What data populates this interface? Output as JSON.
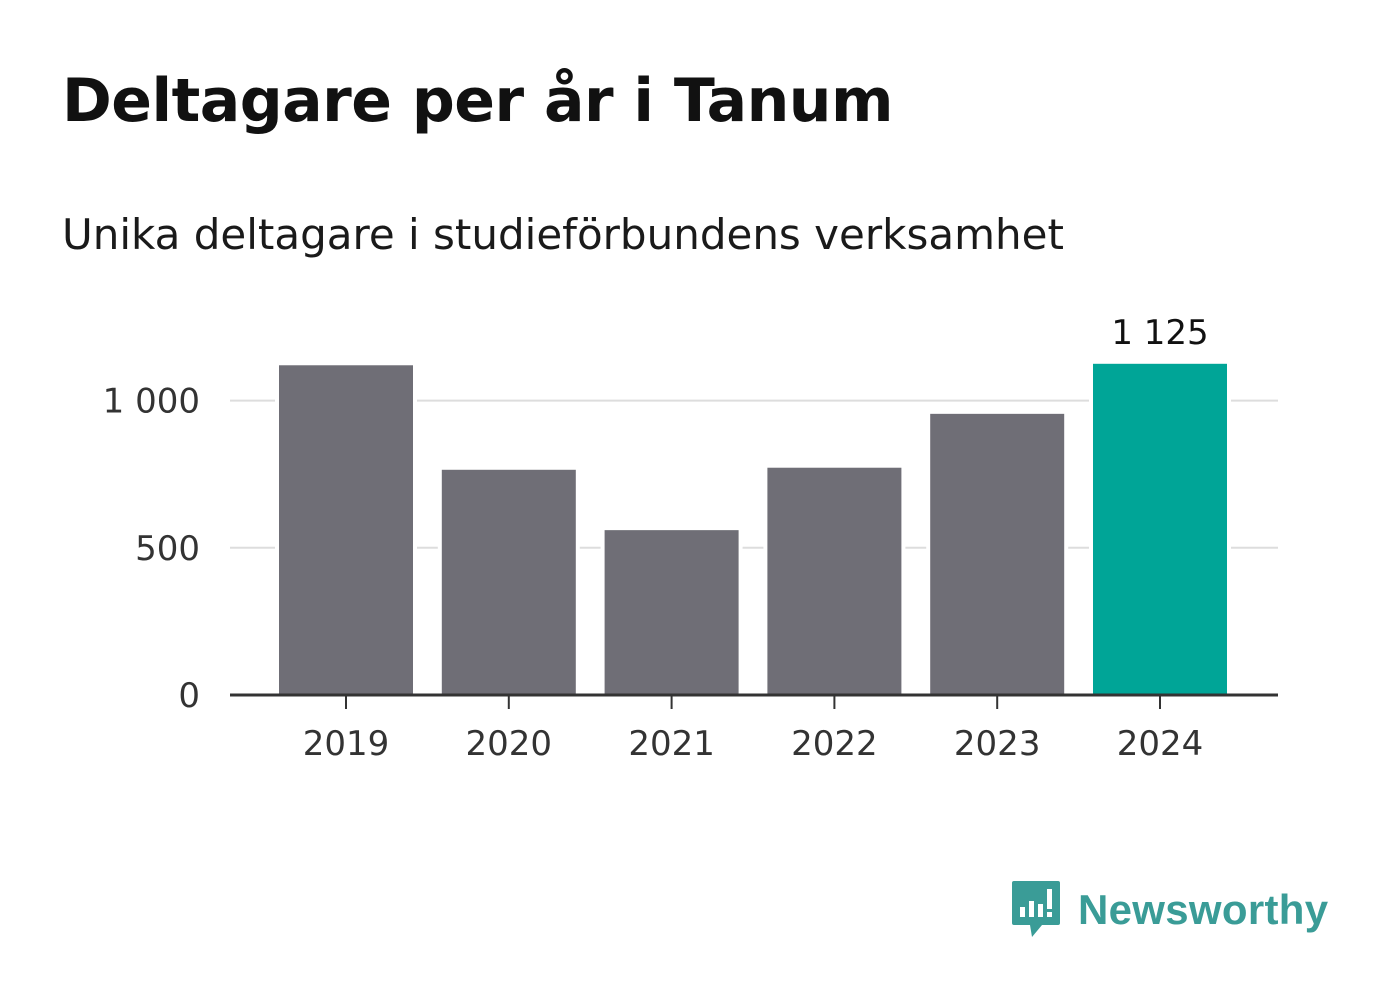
{
  "header": {
    "title": "Deltagare per år i Tanum",
    "subtitle": "Unika deltagare i studieförbundens verksamhet"
  },
  "brand": {
    "name": "Newsworthy",
    "icon": "newsworthy-logo-icon",
    "color": "#3a9c97"
  },
  "colors": {
    "default_bar": "#6f6e76",
    "highlight_bar": "#00a597",
    "grid": "#dddddd",
    "axis": "#333333"
  },
  "chart_data": {
    "type": "bar",
    "categories": [
      "2019",
      "2020",
      "2021",
      "2022",
      "2023",
      "2024"
    ],
    "values": [
      1120,
      765,
      560,
      772,
      955,
      1125
    ],
    "highlight_index": 5,
    "data_labels": [
      {
        "index": 5,
        "text": "1 125"
      }
    ],
    "ylim": [
      0,
      1250
    ],
    "yticks": [
      {
        "value": 0,
        "label": "0"
      },
      {
        "value": 500,
        "label": "500"
      },
      {
        "value": 1000,
        "label": "1 000"
      }
    ],
    "grid": true,
    "xlabel": "",
    "ylabel": ""
  }
}
